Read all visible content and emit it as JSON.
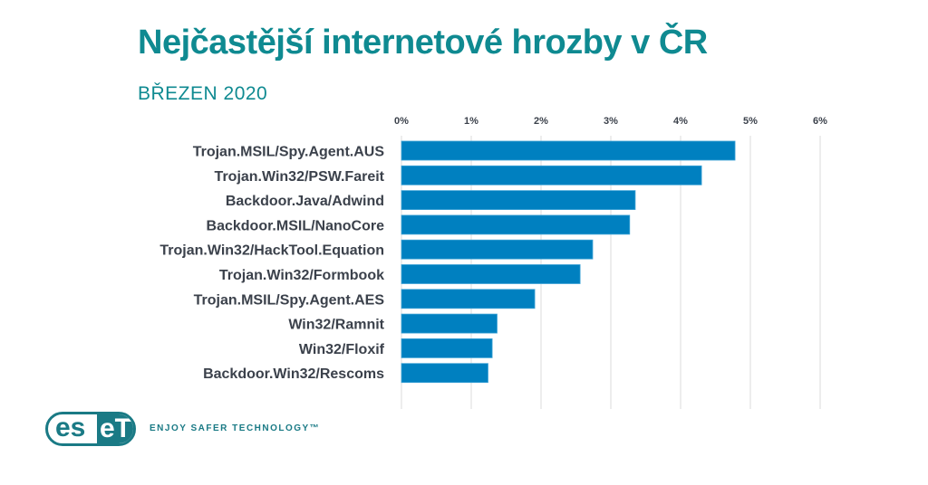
{
  "title": "Nejčastější internetové hrozby v ČR",
  "subtitle": "BŘEZEN 2020",
  "brand": {
    "logo_text_left": "es",
    "logo_text_right": "eT",
    "tagline": "ENJOY SAFER TECHNOLOGY™",
    "color": "#1a7a85"
  },
  "chart_data": {
    "type": "bar",
    "orientation": "horizontal",
    "title": "Nejčastější internetové hrozby v ČR",
    "subtitle": "BŘEZEN 2020",
    "categories": [
      "Trojan.MSIL/Spy.Agent.AUS",
      "Trojan.Win32/PSW.Fareit",
      "Backdoor.Java/Adwind",
      "Backdoor.MSIL/NanoCore",
      "Trojan.Win32/HackTool.Equation",
      "Trojan.Win32/Formbook",
      "Trojan.MSIL/Spy.Agent.AES",
      "Win32/Ramnit",
      "Win32/Floxif",
      "Backdoor.Win32/Rescoms"
    ],
    "values": [
      4.78,
      4.3,
      3.35,
      3.27,
      2.74,
      2.56,
      1.91,
      1.37,
      1.3,
      1.24
    ],
    "unit": "%",
    "xlim": [
      0,
      6
    ],
    "ticks": [
      0,
      1,
      2,
      3,
      4,
      5,
      6
    ],
    "tick_labels": [
      "0%",
      "1%",
      "2%",
      "3%",
      "4%",
      "5%",
      "6%"
    ],
    "xaxis_position": "top",
    "grid": true,
    "bar_color": "#0080c0",
    "grid_color": "#e3e3e3"
  }
}
